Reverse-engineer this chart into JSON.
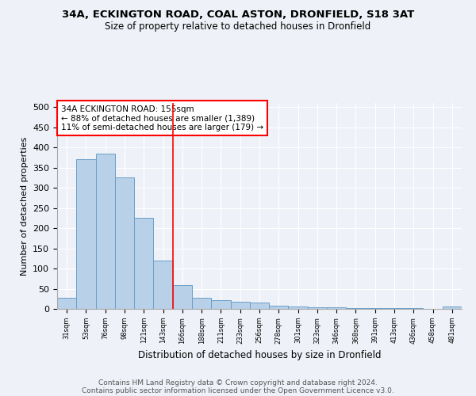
{
  "title1": "34A, ECKINGTON ROAD, COAL ASTON, DRONFIELD, S18 3AT",
  "title2": "Size of property relative to detached houses in Dronfield",
  "xlabel": "Distribution of detached houses by size in Dronfield",
  "ylabel": "Number of detached properties",
  "categories": [
    "31sqm",
    "53sqm",
    "76sqm",
    "98sqm",
    "121sqm",
    "143sqm",
    "166sqm",
    "188sqm",
    "211sqm",
    "233sqm",
    "256sqm",
    "278sqm",
    "301sqm",
    "323sqm",
    "346sqm",
    "368sqm",
    "391sqm",
    "413sqm",
    "436sqm",
    "458sqm",
    "481sqm"
  ],
  "values": [
    28,
    370,
    385,
    325,
    225,
    120,
    58,
    28,
    22,
    18,
    15,
    7,
    5,
    4,
    3,
    1,
    1,
    1,
    1,
    0,
    5
  ],
  "bar_color": "#b8d0e8",
  "bar_edge_color": "#6a9fc8",
  "red_line_x": 5.5,
  "annotation_text": "34A ECKINGTON ROAD: 155sqm\n← 88% of detached houses are smaller (1,389)\n11% of semi-detached houses are larger (179) →",
  "annotation_box_color": "white",
  "annotation_box_edge": "red",
  "footer1": "Contains HM Land Registry data © Crown copyright and database right 2024.",
  "footer2": "Contains public sector information licensed under the Open Government Licence v3.0.",
  "ylim": [
    0,
    510
  ],
  "yticks": [
    0,
    50,
    100,
    150,
    200,
    250,
    300,
    350,
    400,
    450,
    500
  ],
  "bg_color": "#eef2f8",
  "grid_color": "#ffffff"
}
